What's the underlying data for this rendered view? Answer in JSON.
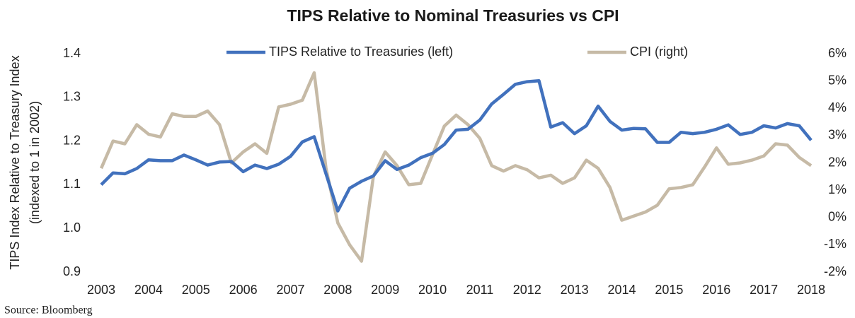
{
  "chart_data": {
    "type": "line",
    "title": "TIPS Relative to Nominal Treasuries vs CPI",
    "y_label": [
      "TIPS Index Relative to Treasury Index",
      "(indexed to 1 in 2002)"
    ],
    "source": "Source: Bloomberg",
    "legend": "top",
    "x": [
      2003,
      2003.25,
      2003.5,
      2003.75,
      2004,
      2004.25,
      2004.5,
      2004.75,
      2005,
      2005.25,
      2005.5,
      2005.75,
      2006,
      2006.25,
      2006.5,
      2006.75,
      2007,
      2007.25,
      2007.5,
      2007.75,
      2008,
      2008.25,
      2008.5,
      2008.75,
      2009,
      2009.25,
      2009.5,
      2009.75,
      2010,
      2010.25,
      2010.5,
      2010.75,
      2011,
      2011.25,
      2011.5,
      2011.75,
      2012,
      2012.25,
      2012.5,
      2012.75,
      2013,
      2013.25,
      2013.5,
      2013.75,
      2014,
      2014.25,
      2014.5,
      2014.75,
      2015,
      2015.25,
      2015.5,
      2015.75,
      2016,
      2016.25,
      2016.5,
      2016.75,
      2017,
      2017.25,
      2017.5,
      2017.75,
      2018
    ],
    "xlim": [
      2003,
      2018
    ],
    "xticks": [
      2003,
      2004,
      2005,
      2006,
      2007,
      2008,
      2009,
      2010,
      2011,
      2012,
      2013,
      2014,
      2015,
      2016,
      2017,
      2018
    ],
    "ylim": [
      0.9,
      1.4
    ],
    "yticks": [
      0.9,
      {
        "value": 1,
        "label": "1.0"
      },
      1.1,
      1.2,
      1.3,
      1.4
    ],
    "y2lim": [
      -2,
      6
    ],
    "y2ticks": [
      {
        "value": -2,
        "label": "-2%"
      },
      {
        "value": -1,
        "label": "-1%"
      },
      {
        "value": 0,
        "label": "0%"
      },
      {
        "value": 1,
        "label": "1%"
      },
      {
        "value": 2,
        "label": "2%"
      },
      {
        "value": 3,
        "label": "3%"
      },
      {
        "value": 4,
        "label": "4%"
      },
      {
        "value": 5,
        "label": "5%"
      },
      {
        "value": 6,
        "label": "6%"
      }
    ],
    "series": [
      {
        "name": "TIPS Relative to Treasuries (left)",
        "color": "#4171bd",
        "axis": "y",
        "values": [
          1.1,
          1.127,
          1.125,
          1.137,
          1.157,
          1.155,
          1.155,
          1.168,
          1.157,
          1.145,
          1.152,
          1.153,
          1.13,
          1.145,
          1.137,
          1.147,
          1.165,
          1.198,
          1.21,
          1.125,
          1.04,
          1.092,
          1.108,
          1.12,
          1.155,
          1.135,
          1.145,
          1.162,
          1.172,
          1.192,
          1.225,
          1.227,
          1.248,
          1.285,
          1.307,
          1.33,
          1.336,
          1.338,
          1.232,
          1.242,
          1.217,
          1.235,
          1.28,
          1.245,
          1.225,
          1.229,
          1.228,
          1.197,
          1.197,
          1.22,
          1.217,
          1.22,
          1.227,
          1.237,
          1.215,
          1.22,
          1.235,
          1.23,
          1.24,
          1.235,
          1.202
        ]
      },
      {
        "name": "CPI (right)",
        "color": "#c6baa6",
        "axis": "y2",
        "values": [
          1.8,
          2.8,
          2.7,
          3.4,
          3.05,
          2.95,
          3.8,
          3.7,
          3.7,
          3.9,
          3.4,
          2.0,
          2.4,
          2.7,
          2.35,
          4.05,
          4.15,
          4.3,
          5.3,
          1.8,
          -0.2,
          -1.0,
          -1.6,
          1.5,
          2.4,
          1.9,
          1.2,
          1.25,
          2.3,
          3.35,
          3.75,
          3.4,
          2.9,
          1.9,
          1.7,
          1.9,
          1.75,
          1.45,
          1.55,
          1.25,
          1.45,
          2.1,
          1.8,
          1.1,
          -0.1,
          0.05,
          0.2,
          0.45,
          1.05,
          1.1,
          1.2,
          1.85,
          2.55,
          1.95,
          2.0,
          2.1,
          2.25,
          2.7,
          2.65,
          2.2,
          1.9
        ]
      }
    ]
  }
}
